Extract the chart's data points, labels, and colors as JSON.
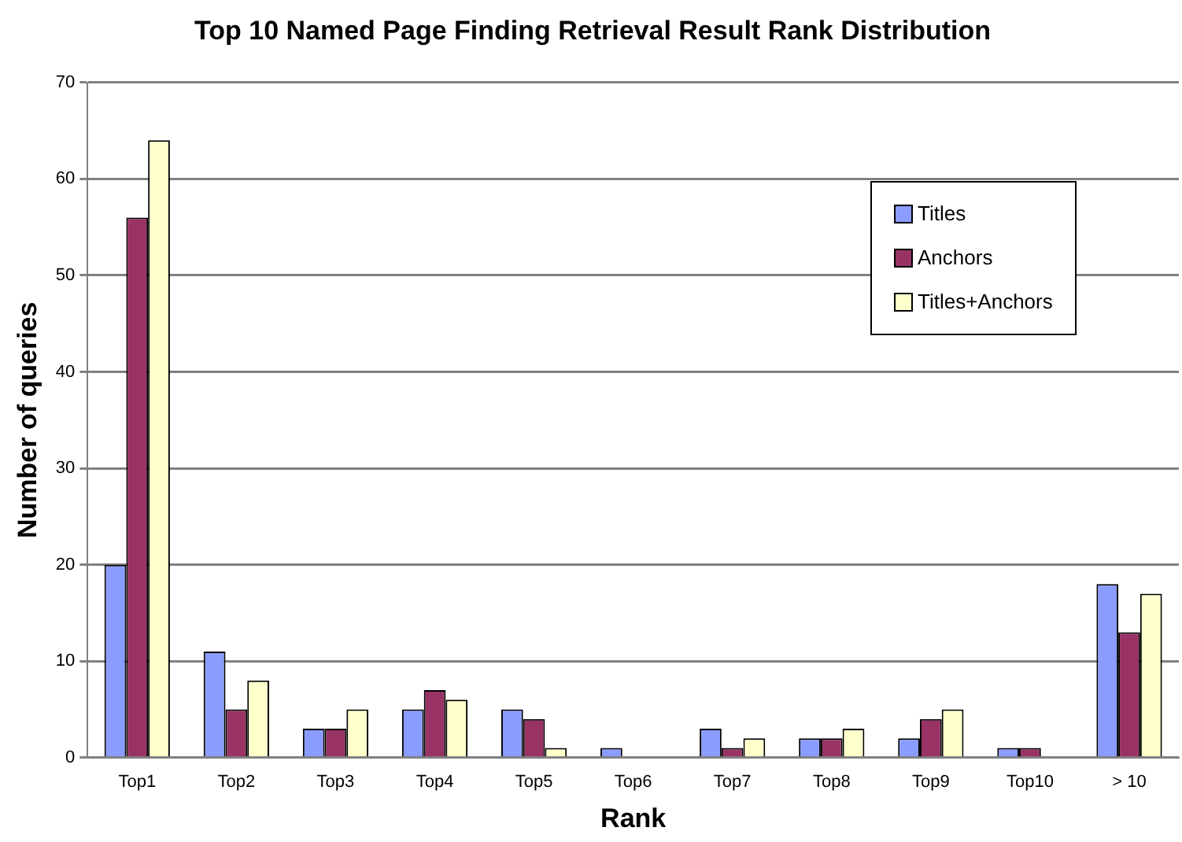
{
  "chart_data": {
    "type": "bar",
    "title": "Top 10 Named Page Finding Retrieval Result Rank Distribution",
    "xlabel": "Rank",
    "ylabel": "Number of queries",
    "categories": [
      "Top1",
      "Top2",
      "Top3",
      "Top4",
      "Top5",
      "Top6",
      "Top7",
      "Top8",
      "Top9",
      "Top10",
      "> 10"
    ],
    "series": [
      {
        "name": "Titles",
        "color": "#8b9cff",
        "values": [
          20,
          11,
          3,
          5,
          5,
          1,
          3,
          2,
          2,
          1,
          18
        ]
      },
      {
        "name": "Anchors",
        "color": "#993366",
        "values": [
          56,
          5,
          3,
          7,
          4,
          0,
          1,
          2,
          4,
          1,
          13
        ]
      },
      {
        "name": "Titles+Anchors",
        "color": "#ffffcc",
        "values": [
          64,
          8,
          5,
          6,
          1,
          0,
          2,
          3,
          5,
          0,
          17
        ]
      }
    ],
    "ylim": [
      0,
      70
    ],
    "yticks": [
      0,
      10,
      20,
      30,
      40,
      50,
      60,
      70
    ],
    "grid": "y",
    "legend": "top right"
  }
}
